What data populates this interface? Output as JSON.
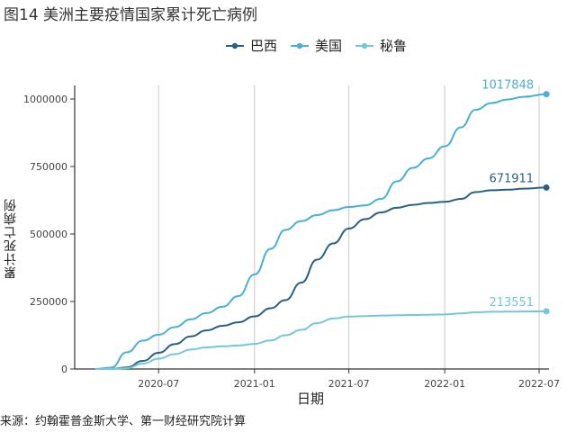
{
  "figure": {
    "title": "图14 美洲主要疫情国家累计死亡病例",
    "source": "来源：约翰霍普金斯大学、第一财经研究院计算"
  },
  "chart_data": {
    "type": "line",
    "xlabel": "日期",
    "ylabel": "累计死亡病例",
    "x_ticks": [
      "2020-07",
      "2021-01",
      "2021-07",
      "2022-01",
      "2022-07"
    ],
    "y_ticks": [
      0,
      250000,
      500000,
      750000,
      1000000
    ],
    "y_tick_labels": [
      "0",
      "250000",
      "500000",
      "750000",
      "1000000"
    ],
    "ylim": [
      0,
      1050000
    ],
    "xlim": [
      "2020-01-22",
      "2022-07-20"
    ],
    "grid": "vertical-major",
    "legend_position": "top",
    "series": [
      {
        "name": "巴西",
        "color": "#2c5f86",
        "end_label": "671911",
        "points": [
          [
            "2020-03-01",
            0
          ],
          [
            "2020-04-01",
            400
          ],
          [
            "2020-05-01",
            6000
          ],
          [
            "2020-06-01",
            30000
          ],
          [
            "2020-07-01",
            60000
          ],
          [
            "2020-08-01",
            92000
          ],
          [
            "2020-09-01",
            121000
          ],
          [
            "2020-10-01",
            143000
          ],
          [
            "2020-11-01",
            160000
          ],
          [
            "2020-12-01",
            173000
          ],
          [
            "2021-01-01",
            195000
          ],
          [
            "2021-02-01",
            225000
          ],
          [
            "2021-03-01",
            255000
          ],
          [
            "2021-04-01",
            320000
          ],
          [
            "2021-05-01",
            405000
          ],
          [
            "2021-06-01",
            465000
          ],
          [
            "2021-07-01",
            520000
          ],
          [
            "2021-08-01",
            555000
          ],
          [
            "2021-09-01",
            580000
          ],
          [
            "2021-10-01",
            597000
          ],
          [
            "2021-11-01",
            608000
          ],
          [
            "2021-12-01",
            615000
          ],
          [
            "2022-01-01",
            619000
          ],
          [
            "2022-02-01",
            630000
          ],
          [
            "2022-03-01",
            655000
          ],
          [
            "2022-04-01",
            662000
          ],
          [
            "2022-05-01",
            664000
          ],
          [
            "2022-06-01",
            668000
          ],
          [
            "2022-07-15",
            671911
          ]
        ]
      },
      {
        "name": "美国",
        "color": "#4aafd6",
        "end_label": "1017848",
        "points": [
          [
            "2020-03-01",
            0
          ],
          [
            "2020-04-01",
            5000
          ],
          [
            "2020-05-01",
            62000
          ],
          [
            "2020-06-01",
            105000
          ],
          [
            "2020-07-01",
            127000
          ],
          [
            "2020-08-01",
            155000
          ],
          [
            "2020-09-01",
            184000
          ],
          [
            "2020-10-01",
            207000
          ],
          [
            "2020-11-01",
            231000
          ],
          [
            "2020-12-01",
            270000
          ],
          [
            "2021-01-01",
            350000
          ],
          [
            "2021-02-01",
            445000
          ],
          [
            "2021-03-01",
            515000
          ],
          [
            "2021-04-01",
            548000
          ],
          [
            "2021-05-01",
            570000
          ],
          [
            "2021-06-01",
            588000
          ],
          [
            "2021-07-01",
            600000
          ],
          [
            "2021-08-01",
            606000
          ],
          [
            "2021-09-01",
            630000
          ],
          [
            "2021-10-01",
            695000
          ],
          [
            "2021-11-01",
            745000
          ],
          [
            "2021-12-01",
            780000
          ],
          [
            "2022-01-01",
            825000
          ],
          [
            "2022-02-01",
            895000
          ],
          [
            "2022-03-01",
            960000
          ],
          [
            "2022-04-01",
            985000
          ],
          [
            "2022-05-01",
            998000
          ],
          [
            "2022-06-01",
            1008000
          ],
          [
            "2022-07-15",
            1017848
          ]
        ]
      },
      {
        "name": "秘鲁",
        "color": "#74c7da",
        "end_label": "213551",
        "points": [
          [
            "2020-03-01",
            0
          ],
          [
            "2020-04-01",
            100
          ],
          [
            "2020-05-01",
            3000
          ],
          [
            "2020-06-01",
            20000
          ],
          [
            "2020-07-01",
            38000
          ],
          [
            "2020-08-01",
            55000
          ],
          [
            "2020-09-01",
            72000
          ],
          [
            "2020-10-01",
            80000
          ],
          [
            "2020-11-01",
            84000
          ],
          [
            "2020-12-01",
            87000
          ],
          [
            "2021-01-01",
            93000
          ],
          [
            "2021-02-01",
            106000
          ],
          [
            "2021-03-01",
            125000
          ],
          [
            "2021-04-01",
            145000
          ],
          [
            "2021-05-01",
            170000
          ],
          [
            "2021-06-01",
            187000
          ],
          [
            "2021-07-01",
            194000
          ],
          [
            "2021-08-01",
            196000
          ],
          [
            "2021-09-01",
            198000
          ],
          [
            "2021-10-01",
            199000
          ],
          [
            "2021-11-01",
            200000
          ],
          [
            "2021-12-01",
            201000
          ],
          [
            "2022-01-01",
            202000
          ],
          [
            "2022-02-01",
            206000
          ],
          [
            "2022-03-01",
            210000
          ],
          [
            "2022-04-01",
            212000
          ],
          [
            "2022-05-01",
            212500
          ],
          [
            "2022-06-01",
            213000
          ],
          [
            "2022-07-15",
            213551
          ]
        ]
      }
    ]
  }
}
